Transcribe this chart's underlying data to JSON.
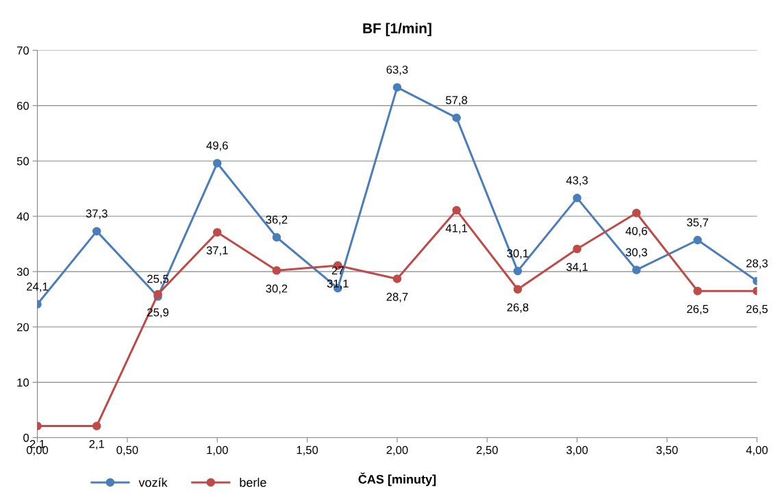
{
  "chart_data": {
    "type": "line",
    "title": "BF [1/min]",
    "xlabel": "ČAS [minuty]",
    "x": [
      0,
      0.33,
      0.67,
      1,
      1.33,
      1.67,
      2,
      2.33,
      2.67,
      3,
      3.33,
      3.67,
      4
    ],
    "series": [
      {
        "name": "vozík",
        "color": "#4a7ebb",
        "values": [
          24.1,
          37.3,
          25.5,
          49.6,
          36.2,
          27,
          63.3,
          57.8,
          30.1,
          43.3,
          30.3,
          35.7,
          28.3
        ],
        "value_labels": [
          "24,1",
          "37,3",
          "25,5",
          "49,6",
          "36,2",
          "27",
          "63,3",
          "57,8",
          "30,1",
          "43,3",
          "30,3",
          "35,7",
          "28,3"
        ]
      },
      {
        "name": "berle",
        "color": "#be4b48",
        "values": [
          2.1,
          2.1,
          25.9,
          37.1,
          30.2,
          31.1,
          28.7,
          41.1,
          26.8,
          34.1,
          40.6,
          26.5,
          26.5
        ],
        "value_labels": [
          "2,1",
          "2,1",
          "25,9",
          "37,1",
          "30,2",
          "31,1",
          "28,7",
          "41,1",
          "26,8",
          "34,1",
          "40,6",
          "26,5",
          "26,5"
        ]
      }
    ],
    "xlim": [
      0,
      4
    ],
    "xticks": [
      {
        "value": 0,
        "label": "0,00"
      },
      {
        "value": 0.5,
        "label": "0,50"
      },
      {
        "value": 1,
        "label": "1,00"
      },
      {
        "value": 1.5,
        "label": "1,50"
      },
      {
        "value": 2,
        "label": "2,00"
      },
      {
        "value": 2.5,
        "label": "2,50"
      },
      {
        "value": 3,
        "label": "3,00"
      },
      {
        "value": 3.5,
        "label": "3,50"
      },
      {
        "value": 4,
        "label": "4,00"
      }
    ],
    "ylim": [
      0,
      70
    ],
    "yticks": [
      0,
      10,
      20,
      30,
      40,
      50,
      60,
      70
    ],
    "grid": "y",
    "legend": "bottom",
    "marker": "circle",
    "line_style": "solid"
  }
}
